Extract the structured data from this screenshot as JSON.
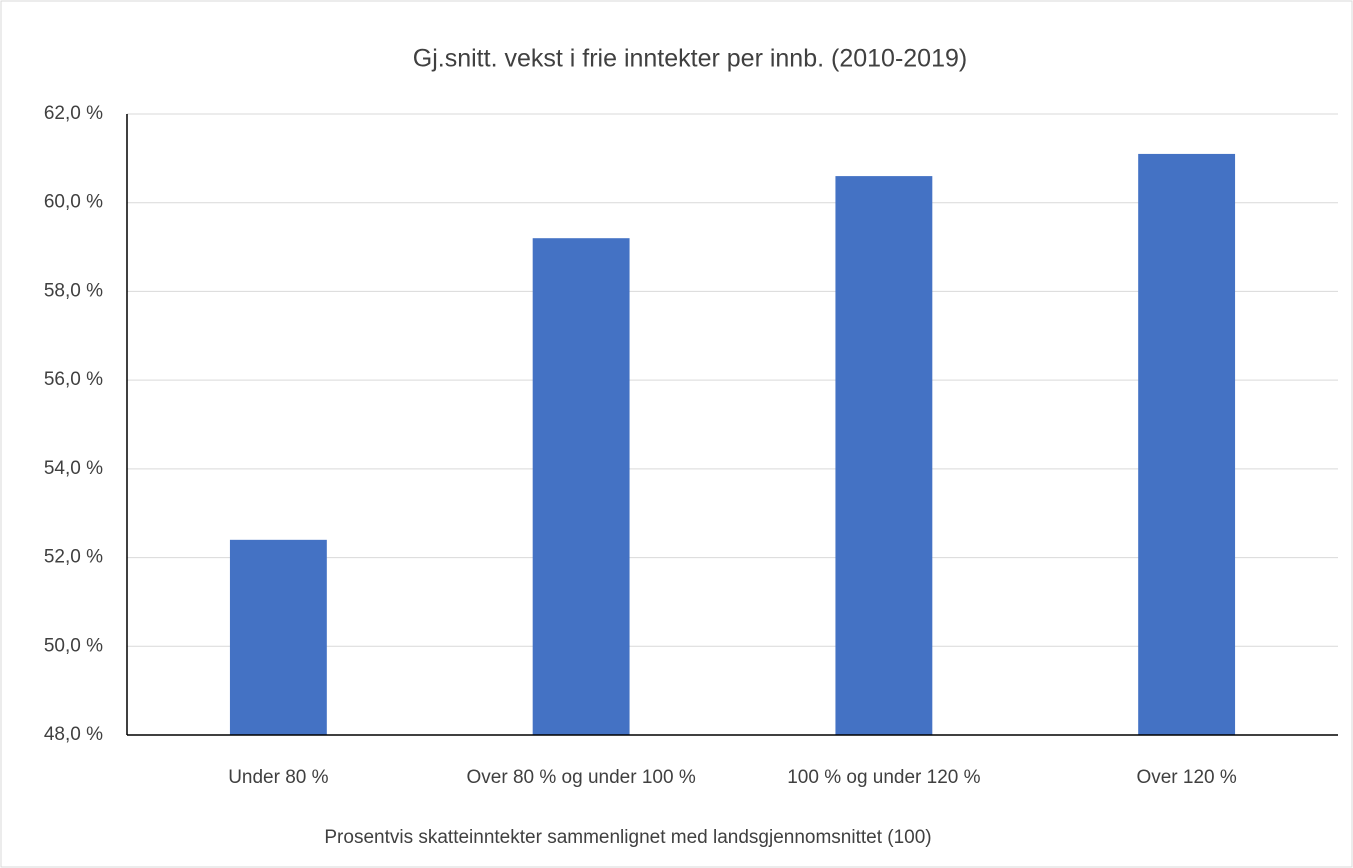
{
  "chart_data": {
    "type": "bar",
    "title": "Gj.snitt. vekst i frie inntekter per innb. (2010-2019)",
    "x_label": "Prosentvis skatteinntekter sammenlignet med landsgjennomsnittet (100)",
    "categories": [
      "Under 80 %",
      "Over 80 % og under 100 %",
      "100 % og under 120 %",
      "Over 120 %"
    ],
    "values": [
      52.4,
      59.2,
      60.6,
      61.1
    ],
    "color": "#4472c4",
    "ylim": [
      48,
      62
    ],
    "yticks": [
      {
        "value": 48,
        "label": "48,0 %"
      },
      {
        "value": 50,
        "label": "50,0 %"
      },
      {
        "value": 52,
        "label": "52,0 %"
      },
      {
        "value": 54,
        "label": "54,0 %"
      },
      {
        "value": 56,
        "label": "56,0 %"
      },
      {
        "value": 58,
        "label": "58,0 %"
      },
      {
        "value": 60,
        "label": "60,0 %"
      },
      {
        "value": 62,
        "label": "62,0 %"
      }
    ],
    "grid": true
  }
}
